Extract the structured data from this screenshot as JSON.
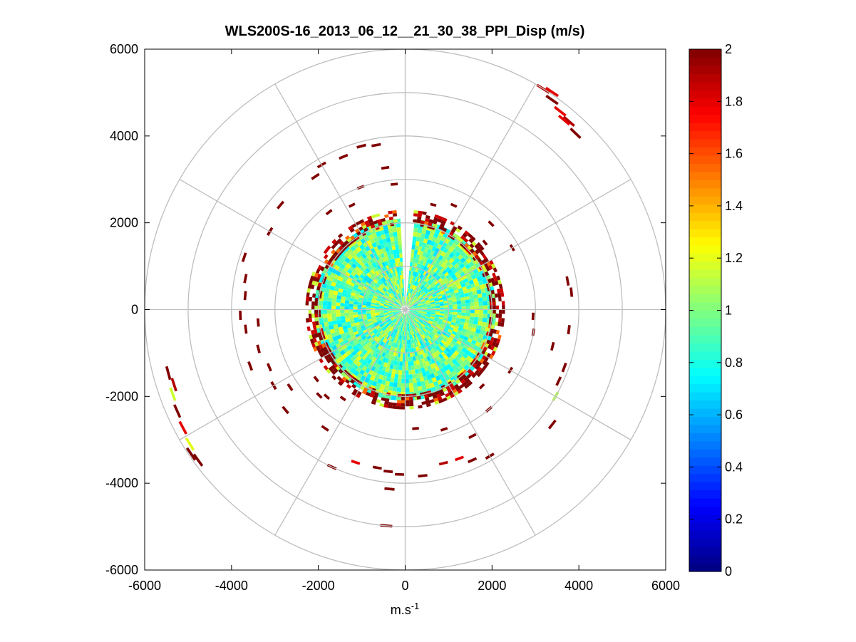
{
  "chart_data": {
    "type": "heatmap",
    "subtype": "polar-ppi",
    "title": "WLS200S-16_2013_06_12__21_30_38_PPI_Disp (m/s)",
    "xlabel": {
      "base": "m.s",
      "sup": "-1"
    },
    "ylabel": "",
    "xlim": [
      -6000,
      6000
    ],
    "ylim": [
      -6000,
      6000
    ],
    "x_ticks": [
      "-6000",
      "-4000",
      "-2000",
      "0",
      "2000",
      "4000",
      "6000"
    ],
    "y_ticks": [
      "6000",
      "4000",
      "2000",
      "0",
      "-2000",
      "-4000",
      "-6000"
    ],
    "grid": true,
    "range_rings": [
      1000,
      2000,
      3000,
      4000,
      5000,
      6000
    ],
    "spoke_angles_deg": [
      0,
      30,
      60,
      90,
      120,
      150,
      180,
      210,
      240,
      270,
      300,
      330
    ],
    "colorbar": {
      "colormap": "jet",
      "clim": [
        0,
        2
      ],
      "ticks": [
        "0",
        "0.2",
        "0.4",
        "0.6",
        "0.8",
        "1",
        "1.2",
        "1.4",
        "1.6",
        "1.8",
        "2"
      ]
    },
    "core_region": {
      "r_min": 0,
      "r_max": 2100,
      "value": 0.95,
      "gap_azimuth_deg": [
        -5,
        5
      ]
    },
    "boundary_ring": {
      "r_min": 1950,
      "r_max": 2300
    },
    "cells": [
      {
        "az": 32,
        "r": 6000,
        "v": 1.9
      },
      {
        "az": 35,
        "r": 5900,
        "v": 2.0
      },
      {
        "az": 38,
        "r": 5800,
        "v": 1.8
      },
      {
        "az": 41,
        "r": 5750,
        "v": 1.9
      },
      {
        "az": 44,
        "r": 5650,
        "v": 2.0
      },
      {
        "az": 34,
        "r": 6050,
        "v": 1.8
      },
      {
        "az": 40,
        "r": 5700,
        "v": 1.8
      },
      {
        "az": 255,
        "r": 5650,
        "v": 2.0
      },
      {
        "az": 250,
        "r": 5700,
        "v": 1.15
      },
      {
        "az": 246,
        "r": 5750,
        "v": 2.0
      },
      {
        "az": 242,
        "r": 5800,
        "v": 1.8
      },
      {
        "az": 238,
        "r": 5850,
        "v": 1.2
      },
      {
        "az": 234,
        "r": 5900,
        "v": 2.0
      },
      {
        "az": 252,
        "r": 5600,
        "v": 1.9
      },
      {
        "az": 236,
        "r": 5950,
        "v": 2.0
      },
      {
        "az": 350,
        "r": 3850,
        "v": 2.0
      },
      {
        "az": 345,
        "r": 3900,
        "v": 2.0
      },
      {
        "az": 338,
        "r": 3800,
        "v": 2.0
      },
      {
        "az": 330,
        "r": 3850,
        "v": 2.0
      },
      {
        "az": 326,
        "r": 3700,
        "v": 2.0
      },
      {
        "az": 352,
        "r": 3300,
        "v": 2.0
      },
      {
        "az": 355,
        "r": 2900,
        "v": 2.0
      },
      {
        "az": 340,
        "r": 3000,
        "v": 2.0
      },
      {
        "az": 333,
        "r": 2700,
        "v": 2.0
      },
      {
        "az": 322,
        "r": 2850,
        "v": 2.0
      },
      {
        "az": 300,
        "r": 3600,
        "v": 2.0
      },
      {
        "az": 310,
        "r": 3750,
        "v": 2.0
      },
      {
        "az": 288,
        "r": 3900,
        "v": 2.0
      },
      {
        "az": 281,
        "r": 3750,
        "v": 2.0
      },
      {
        "az": 275,
        "r": 3700,
        "v": 2.0
      },
      {
        "az": 268,
        "r": 3800,
        "v": 2.0
      },
      {
        "az": 265,
        "r": 3400,
        "v": 2.0
      },
      {
        "az": 263,
        "r": 3700,
        "v": 2.0
      },
      {
        "az": 255,
        "r": 3500,
        "v": 2.0
      },
      {
        "az": 250,
        "r": 3800,
        "v": 2.0
      },
      {
        "az": 247,
        "r": 3400,
        "v": 2.0
      },
      {
        "az": 240,
        "r": 3500,
        "v": 2.0
      },
      {
        "az": 236,
        "r": 3200,
        "v": 2.0
      },
      {
        "az": 230,
        "r": 3600,
        "v": 2.0
      },
      {
        "az": 232,
        "r": 2600,
        "v": 2.0
      },
      {
        "az": 222,
        "r": 2700,
        "v": 2.0
      },
      {
        "az": 214,
        "r": 3300,
        "v": 2.0
      },
      {
        "az": 205,
        "r": 4000,
        "v": 2.0
      },
      {
        "az": 198,
        "r": 3700,
        "v": 1.8
      },
      {
        "az": 190,
        "r": 3700,
        "v": 2.0
      },
      {
        "az": 186,
        "r": 3750,
        "v": 2.0
      },
      {
        "az": 182,
        "r": 3800,
        "v": 2.0
      },
      {
        "az": 174,
        "r": 3850,
        "v": 2.0
      },
      {
        "az": 166,
        "r": 3650,
        "v": 1.9
      },
      {
        "az": 160,
        "r": 3650,
        "v": 1.8
      },
      {
        "az": 156,
        "r": 3800,
        "v": 2.0
      },
      {
        "az": 150,
        "r": 3900,
        "v": 2.0
      },
      {
        "az": 152,
        "r": 3300,
        "v": 2.0
      },
      {
        "az": 185,
        "r": 5000,
        "v": 2.0
      },
      {
        "az": 185,
        "r": 4150,
        "v": 2.0
      },
      {
        "az": 175,
        "r": 2750,
        "v": 2.0
      },
      {
        "az": 162,
        "r": 2900,
        "v": 2.0
      },
      {
        "az": 128,
        "r": 4300,
        "v": 2.0
      },
      {
        "az": 120,
        "r": 4000,
        "v": 1.1
      },
      {
        "az": 115,
        "r": 3900,
        "v": 2.0
      },
      {
        "az": 110,
        "r": 3900,
        "v": 2.0
      },
      {
        "az": 104,
        "r": 3500,
        "v": 2.0
      },
      {
        "az": 100,
        "r": 3000,
        "v": 2.0
      },
      {
        "az": 84,
        "r": 3850,
        "v": 2.0
      },
      {
        "az": 80,
        "r": 3800,
        "v": 2.0
      },
      {
        "az": 97,
        "r": 3800,
        "v": 2.0
      },
      {
        "az": 93,
        "r": 2950,
        "v": 2.0
      },
      {
        "az": 60,
        "r": 2850,
        "v": 2.0
      },
      {
        "az": 50,
        "r": 2400,
        "v": 2.0
      },
      {
        "az": 45,
        "r": 2800,
        "v": 2.0
      },
      {
        "az": 25,
        "r": 2650,
        "v": 2.0
      },
      {
        "az": 15,
        "r": 2500,
        "v": 2.0
      },
      {
        "az": 120,
        "r": 2800,
        "v": 2.0
      },
      {
        "az": 140,
        "r": 3000,
        "v": 2.0
      },
      {
        "az": 135,
        "r": 2500,
        "v": 2.0
      },
      {
        "az": 225,
        "r": 2800,
        "v": 2.0
      },
      {
        "az": 215,
        "r": 2500,
        "v": 2.0
      }
    ]
  }
}
